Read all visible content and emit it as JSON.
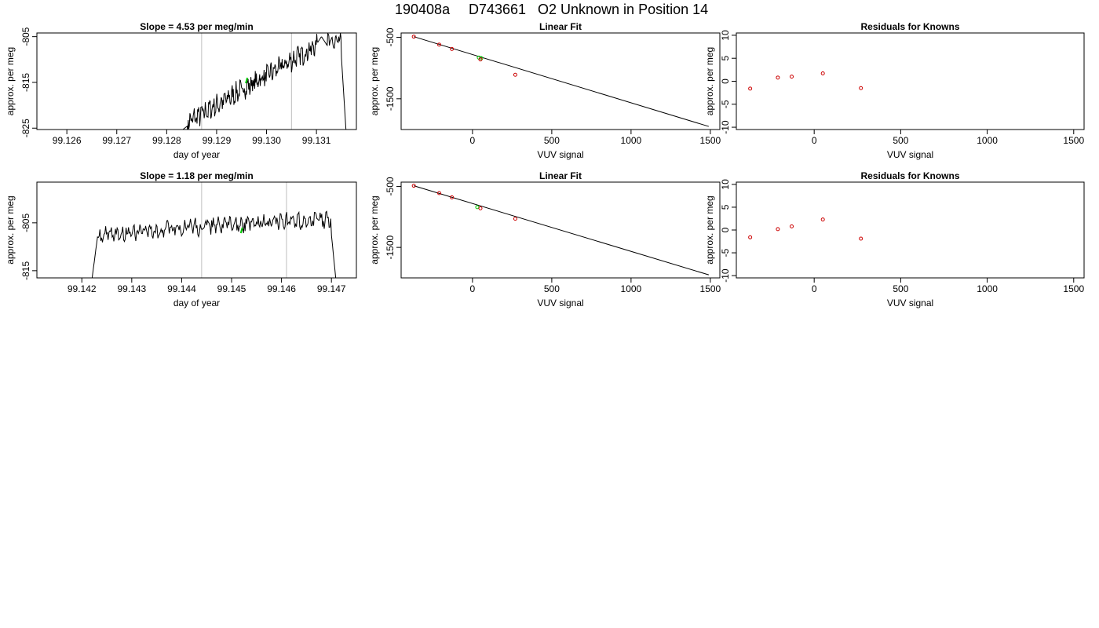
{
  "figure": {
    "title_run": "190408a",
    "title_tank": "D743661",
    "title_desc": "O2 Unknown in Position  14"
  },
  "chart_data": [
    {
      "id": "ts1",
      "type": "line",
      "title": "Slope =  4.53  per meg/min",
      "xlabel": "day of year",
      "ylabel": "approx. per meg",
      "xlim": [
        99.1254,
        99.1318
      ],
      "ylim": [
        -825.3,
        -804.2
      ],
      "xticks": [
        99.126,
        99.127,
        99.128,
        99.129,
        99.13,
        99.131
      ],
      "xtick_labels": [
        "99.126",
        "99.127",
        "99.128",
        "99.129",
        "99.130",
        "99.131"
      ],
      "yticks": [
        -825,
        -815,
        -805
      ],
      "ytick_labels": [
        "-825",
        "-815",
        "-805"
      ],
      "vlines": [
        99.1287,
        99.1305
      ],
      "x_start": 99.1283,
      "x_end": 99.1316,
      "y_start": -825.5,
      "x_peak": 99.1311,
      "y_peak": -805.0,
      "x_drop": 99.1315,
      "y_drop": -827,
      "trend_a": -824.5,
      "trend_b": -806.5,
      "amp": 2.2,
      "green_x": 99.1296,
      "green_y": -814.5,
      "line_color": "#000000",
      "green_color": "#00cc00",
      "vline_color": "#bebebe"
    },
    {
      "id": "fit1",
      "type": "scatter",
      "title": "Linear Fit",
      "xlabel": "VUV signal",
      "ylabel": "approx. per meg",
      "xlim": [
        -450,
        1560
      ],
      "ylim": [
        -2000,
        -430
      ],
      "xticks": [
        0,
        500,
        1000,
        1500
      ],
      "xtick_labels": [
        "0",
        "500",
        "1000",
        "1500"
      ],
      "yticks": [
        -500,
        -1500
      ],
      "ytick_labels": [
        "-500",
        "-1500"
      ],
      "points_x": [
        -370,
        -210,
        -130,
        50,
        270
      ],
      "points_y": [
        -490,
        -620,
        -690,
        -860,
        -1110
      ],
      "point_color": "#cc0000",
      "green_x": [
        40,
        55
      ],
      "green_y": [
        -830,
        -840
      ],
      "green_color": "#00cc00",
      "line_x": [
        -370,
        1490
      ],
      "line_y": [
        -490,
        -1950
      ]
    },
    {
      "id": "res1",
      "type": "scatter",
      "title": "Residuals for Knowns",
      "xlabel": "VUV signal",
      "ylabel": "approx. per meg",
      "xlim": [
        -450,
        1560
      ],
      "ylim": [
        -10.5,
        10.5
      ],
      "xticks": [
        0,
        500,
        1000,
        1500
      ],
      "xtick_labels": [
        "0",
        "500",
        "1000",
        "1500"
      ],
      "yticks": [
        10,
        5,
        0,
        -5,
        -10
      ],
      "ytick_labels": [
        "10",
        "5",
        "0",
        "-5",
        "-10"
      ],
      "points_x": [
        -370,
        -210,
        -130,
        50,
        270
      ],
      "points_y": [
        -1.6,
        0.8,
        1.0,
        1.7,
        -1.5
      ],
      "point_color": "#cc0000"
    },
    {
      "id": "ts2",
      "type": "line",
      "title": "Slope =  1.18  per meg/min",
      "xlabel": "day of year",
      "ylabel": "approx. per meg",
      "xlim": [
        99.1411,
        99.1475
      ],
      "ylim": [
        -816.5,
        -796.5
      ],
      "xticks": [
        99.142,
        99.143,
        99.144,
        99.145,
        99.146,
        99.147
      ],
      "xtick_labels": [
        "99.142",
        "99.143",
        "99.144",
        "99.145",
        "99.146",
        "99.147"
      ],
      "yticks": [
        -815,
        -805
      ],
      "ytick_labels": [
        "-815",
        "-805"
      ],
      "vlines": [
        99.1444,
        99.1461
      ],
      "x_start": 99.1422,
      "x_end": 99.1471,
      "y_start": -817,
      "x_peak": 99.1469,
      "y_peak": -805.5,
      "x_drop": 99.147,
      "y_drop": -818,
      "trend_a": -807.5,
      "trend_b": -804.5,
      "amp": 1.6,
      "green_x": 99.1452,
      "green_y": -806.5,
      "line_color": "#000000",
      "green_color": "#00cc00",
      "vline_color": "#bebebe"
    },
    {
      "id": "fit2",
      "type": "scatter",
      "title": "Linear Fit",
      "xlabel": "VUV signal",
      "ylabel": "approx. per meg",
      "xlim": [
        -450,
        1560
      ],
      "ylim": [
        -2000,
        -430
      ],
      "xticks": [
        0,
        500,
        1000,
        1500
      ],
      "xtick_labels": [
        "0",
        "500",
        "1000",
        "1500"
      ],
      "yticks": [
        -500,
        -1500
      ],
      "ytick_labels": [
        "-500",
        "-1500"
      ],
      "points_x": [
        -370,
        -210,
        -130,
        50,
        270
      ],
      "points_y": [
        -490,
        -610,
        -680,
        -860,
        -1030
      ],
      "point_color": "#cc0000",
      "green_x": [
        30
      ],
      "green_y": [
        -840
      ],
      "green_color": "#00cc00",
      "line_x": [
        -370,
        1490
      ],
      "line_y": [
        -490,
        -1950
      ]
    },
    {
      "id": "res2",
      "type": "scatter",
      "title": "Residuals for Knowns",
      "xlabel": "VUV signal",
      "ylabel": "approx. per meg",
      "xlim": [
        -450,
        1560
      ],
      "ylim": [
        -10.5,
        10.5
      ],
      "xticks": [
        0,
        500,
        1000,
        1500
      ],
      "xtick_labels": [
        "0",
        "500",
        "1000",
        "1500"
      ],
      "yticks": [
        10,
        5,
        0,
        -5,
        -10
      ],
      "ytick_labels": [
        "10",
        "5",
        "0",
        "-5",
        "-10"
      ],
      "points_x": [
        -370,
        -210,
        -130,
        50,
        270
      ],
      "points_y": [
        -1.6,
        0.2,
        0.8,
        2.3,
        -1.9
      ],
      "point_color": "#cc0000"
    }
  ]
}
